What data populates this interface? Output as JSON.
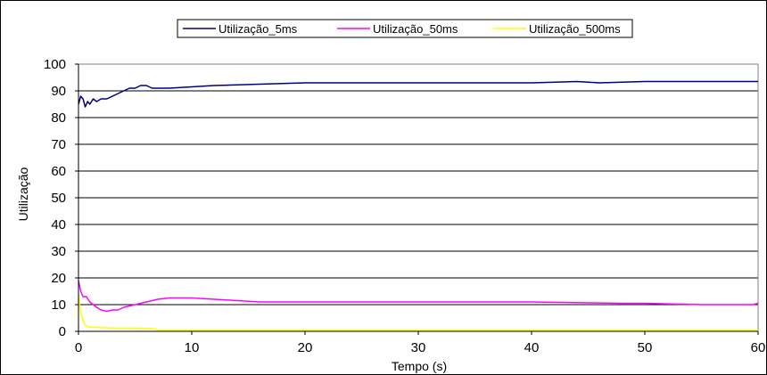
{
  "chart_data": {
    "type": "line",
    "title": "",
    "xlabel": "Tempo (s)",
    "ylabel": "Utilização",
    "xlim": [
      0,
      60
    ],
    "ylim": [
      0,
      100
    ],
    "xticks": [
      0,
      10,
      20,
      30,
      40,
      50,
      60
    ],
    "yticks": [
      0,
      10,
      20,
      30,
      40,
      50,
      60,
      70,
      80,
      90,
      100
    ],
    "grid": "horizontal",
    "legend_position": "top",
    "series": [
      {
        "name": "Utilização_5ms",
        "color": "#000080",
        "x": [
          0,
          0.2,
          0.4,
          0.6,
          0.8,
          1.0,
          1.3,
          1.6,
          2.0,
          2.5,
          3.0,
          3.5,
          4.0,
          4.5,
          5.0,
          5.5,
          6.0,
          6.5,
          7.0,
          8.0,
          10.0,
          12.0,
          16.0,
          20.0,
          24.0,
          30.0,
          40.0,
          44.0,
          46.0,
          50.0,
          55.0,
          60.0
        ],
        "y": [
          85,
          88,
          87,
          84,
          86,
          85,
          87,
          86,
          87,
          87,
          88,
          89,
          90,
          91,
          91,
          92,
          92,
          91,
          91,
          91,
          91.5,
          92,
          92.5,
          93,
          93,
          93,
          93,
          93.5,
          93,
          93.5,
          93.5,
          93.5
        ]
      },
      {
        "name": "Utilização_50ms",
        "color": "#ff00ff",
        "x": [
          0,
          0.2,
          0.4,
          0.7,
          1.0,
          1.3,
          1.6,
          2.0,
          2.5,
          3.0,
          3.5,
          4.0,
          5.0,
          6.0,
          7.0,
          8.0,
          10.0,
          12.0,
          14.0,
          16.0,
          20.0,
          25.0,
          30.0,
          40.0,
          48.0,
          50.0,
          55.0,
          59.5,
          60.0
        ],
        "y": [
          19,
          15,
          13,
          13,
          11,
          10,
          9,
          8,
          7.5,
          8,
          8,
          9,
          10,
          11,
          12,
          12.5,
          12.5,
          12,
          11.5,
          11,
          11,
          11,
          11,
          11,
          10.5,
          10.5,
          10,
          10,
          10.5
        ]
      },
      {
        "name": "Utilização_500ms",
        "color": "#ffff00",
        "x": [
          0,
          0.1,
          0.2,
          0.35,
          0.5,
          0.7,
          1.0,
          1.5,
          3.0,
          5.0,
          6.5,
          7.0,
          20.0,
          40.0,
          60.0
        ],
        "y": [
          14,
          10,
          7,
          5,
          3,
          2,
          1.5,
          1.5,
          1.2,
          1.2,
          1.0,
          0.5,
          0.5,
          0.5,
          0.5
        ]
      }
    ]
  }
}
